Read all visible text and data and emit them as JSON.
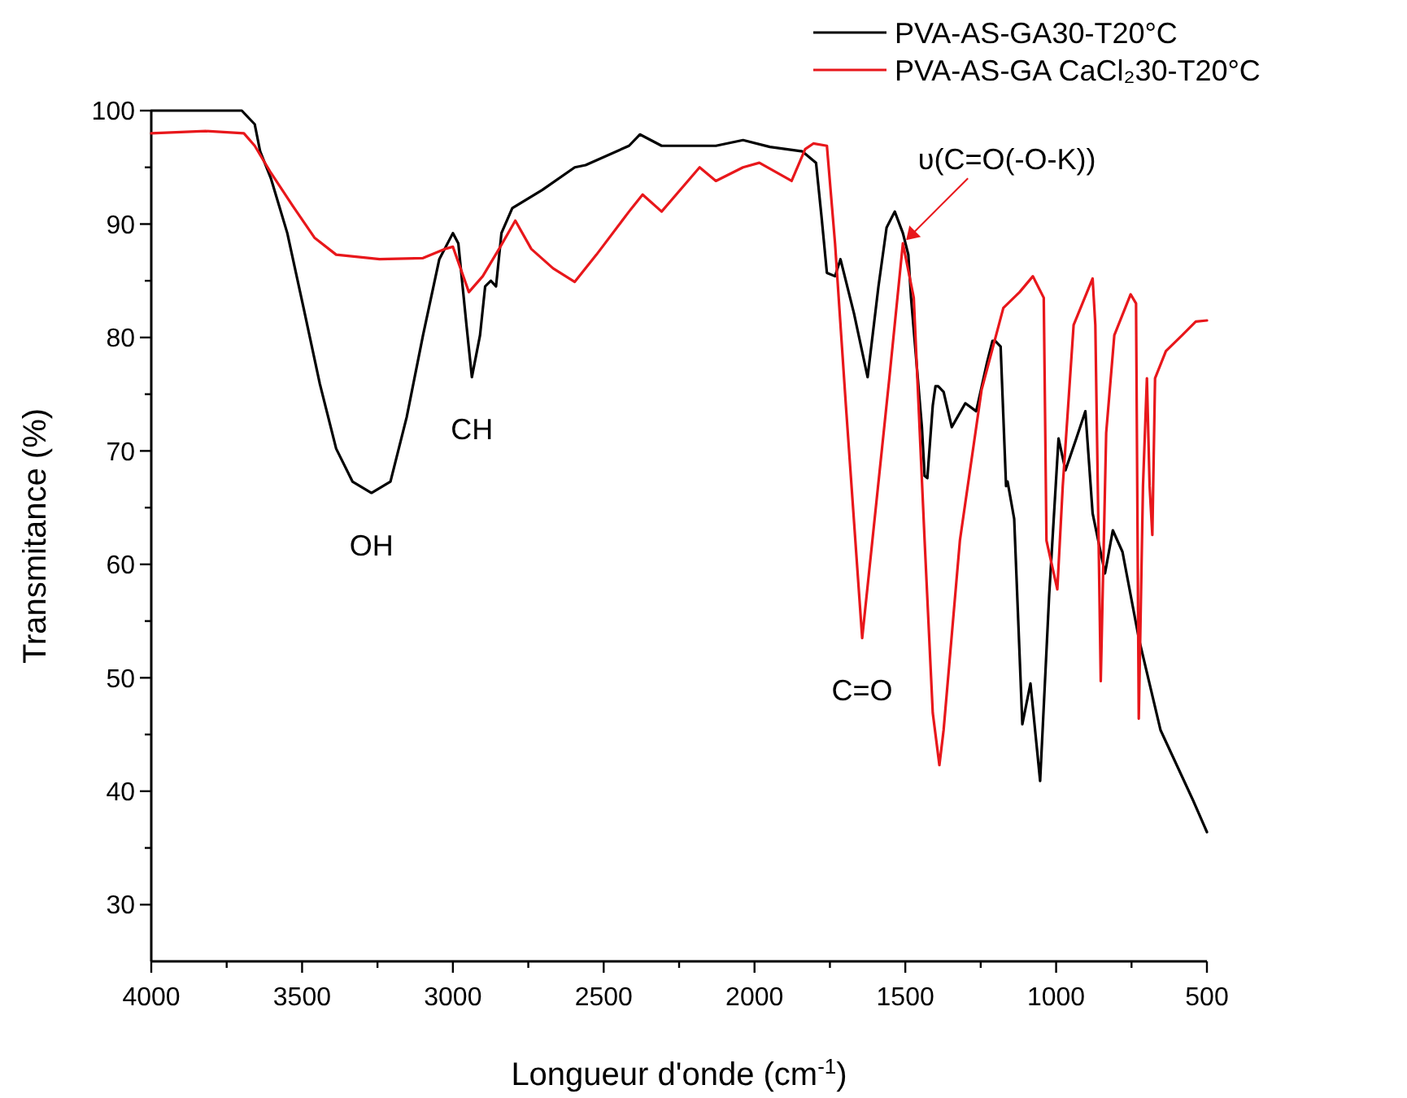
{
  "chart_data": {
    "type": "line",
    "xlabel": "Longueur d'onde (cm$^{-1}$)",
    "ylabel": "Transmitance (%)",
    "xlim": [
      4000,
      500
    ],
    "ylim": [
      25,
      100
    ],
    "xticks": [
      4000,
      {
        "value": 3750,
        "label": null
      },
      3500,
      {
        "value": 3250,
        "label": null
      },
      3000,
      {
        "value": 2750,
        "label": null
      },
      2500,
      {
        "value": 2250,
        "label": null
      },
      2000,
      {
        "value": 1750,
        "label": null
      },
      1500,
      {
        "value": 1250,
        "label": null
      },
      1000,
      {
        "value": 750,
        "label": null
      },
      500
    ],
    "yticks": [
      30,
      {
        "value": 35,
        "label": null
      },
      40,
      {
        "value": 45,
        "label": null
      },
      50,
      {
        "value": 55,
        "label": null
      },
      60,
      {
        "value": 65,
        "label": null
      },
      70,
      {
        "value": 75,
        "label": null
      },
      80,
      {
        "value": 85,
        "label": null
      },
      90,
      {
        "value": 95,
        "label": null
      },
      100
    ],
    "grid": false,
    "legend": "top right",
    "marker": "none",
    "line_style": "solid",
    "series": [
      {
        "name": "PVA-AS-GA30-T20°C",
        "color": "#000000",
        "x": [
          4000,
          3850,
          3700,
          3657,
          3639,
          3603,
          3549,
          3495,
          3441,
          3387,
          3333,
          3270,
          3207,
          3153,
          3099,
          3045,
          3000,
          2982,
          2955,
          2937,
          2910,
          2893,
          2874,
          2857,
          2839,
          2803,
          2704,
          2596,
          2560,
          2416,
          2380,
          2308,
          2128,
          2038,
          1949,
          1841,
          1796,
          1778,
          1760,
          1733,
          1715,
          1670,
          1625,
          1589,
          1562,
          1535,
          1508,
          1490,
          1481,
          1445,
          1436,
          1427,
          1409,
          1400,
          1391,
          1373,
          1346,
          1301,
          1265,
          1229,
          1211,
          1202,
          1184,
          1166,
          1161,
          1139,
          1112,
          1085,
          1053,
          1023,
          992,
          969,
          933,
          903,
          879,
          838,
          812,
          780,
          726,
          654,
          546,
          500
        ],
        "values": [
          100,
          100,
          100,
          98.8,
          96.4,
          94,
          89.2,
          82.6,
          75.9,
          70.2,
          67.3,
          66.3,
          67.3,
          73,
          80.2,
          86.9,
          89.2,
          88.3,
          81.1,
          76.5,
          80.2,
          84.5,
          85,
          84.5,
          89.2,
          91.4,
          93,
          95,
          95.2,
          96.9,
          97.9,
          96.9,
          96.9,
          97.4,
          96.8,
          96.4,
          95.4,
          90.7,
          85.7,
          85.4,
          86.9,
          82.1,
          76.5,
          84.5,
          89.7,
          91.1,
          89.2,
          87.3,
          83.5,
          72.1,
          67.8,
          67.6,
          74,
          75.7,
          75.7,
          75.2,
          72.1,
          74.2,
          73.5,
          77.8,
          79.7,
          79.7,
          79.2,
          66.9,
          67.3,
          64,
          45.9,
          49.5,
          40.9,
          57.3,
          71.1,
          68.3,
          71.1,
          73.5,
          64.5,
          59.2,
          63,
          61.1,
          53.5,
          45.4,
          39.2,
          36.4
        ]
      },
      {
        "name": "PVA-AS-GA CaCl₂30-T20°C",
        "color": "#e8171b",
        "x": [
          4000,
          3820,
          3693,
          3657,
          3603,
          3531,
          3459,
          3387,
          3243,
          3099,
          3027,
          3000,
          2947,
          2901,
          2847,
          2793,
          2740,
          2668,
          2596,
          2524,
          2416,
          2371,
          2308,
          2182,
          2128,
          2038,
          1984,
          1877,
          1832,
          1805,
          1760,
          1733,
          1697,
          1643,
          1553,
          1508,
          1472,
          1436,
          1409,
          1387,
          1373,
          1319,
          1247,
          1175,
          1121,
          1077,
          1041,
          1032,
          996,
          978,
          942,
          879,
          870,
          852,
          834,
          807,
          753,
          735,
          726,
          712,
          699,
          690,
          681,
          672,
          636,
          582,
          537,
          500
        ],
        "values": [
          98,
          98.2,
          98,
          96.9,
          94.5,
          91.6,
          88.8,
          87.3,
          86.9,
          87,
          87.8,
          88,
          84,
          85.4,
          87.8,
          90.3,
          87.8,
          86.1,
          84.9,
          87.3,
          91.1,
          92.6,
          91.1,
          95,
          93.8,
          95,
          95.4,
          93.8,
          96.6,
          97.1,
          96.9,
          88.3,
          74,
          53.5,
          76.4,
          88.3,
          83.5,
          62.1,
          46.9,
          42.3,
          45.4,
          62.1,
          75.4,
          82.6,
          84,
          85.4,
          83.5,
          62.1,
          57.8,
          66.9,
          81.1,
          85.2,
          81.1,
          49.7,
          71.6,
          80.2,
          83.8,
          83,
          46.4,
          66.9,
          76.4,
          66.9,
          62.6,
          76.4,
          78.8,
          80.2,
          81.4,
          81.5
        ]
      }
    ],
    "annotations": [
      {
        "text": "OH",
        "x": 3270,
        "y": 66.3
      },
      {
        "text": "CH",
        "x": 2937,
        "y": 76.5
      },
      {
        "text": "C=O",
        "x": 1643,
        "y": 53.5
      },
      {
        "text": "υ(C=O(-O-K))",
        "x": 1508,
        "y": 88.3
      }
    ]
  }
}
